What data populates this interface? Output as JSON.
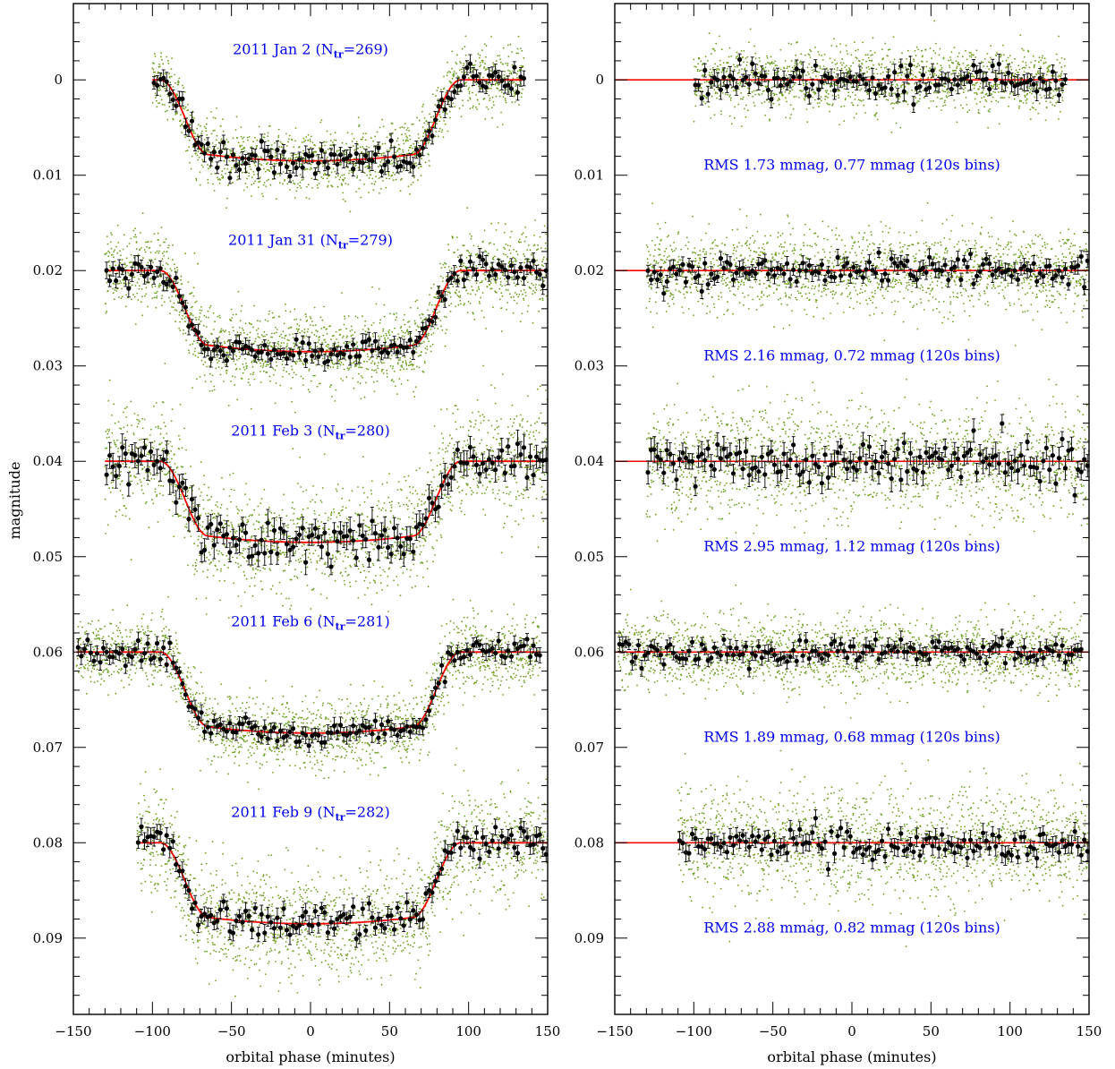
{
  "chart_data": [
    {
      "type": "scatter",
      "panel": "left",
      "title": "",
      "xlabel": "orbital phase (minutes)",
      "ylabel": "magnitude",
      "xlim": [
        -150,
        150
      ],
      "ylim": [
        0.098,
        -0.008
      ],
      "y_inverted": true,
      "x_ticks": [
        -150,
        -100,
        -50,
        0,
        50,
        100,
        150
      ],
      "x_tick_labels": [
        "−150",
        "−100",
        "−50",
        "0",
        "50",
        "100",
        "150"
      ],
      "y_ticks": [
        0,
        0.01,
        0.02,
        0.03,
        0.04,
        0.05,
        0.06,
        0.07,
        0.08,
        0.09
      ],
      "y_tick_labels": [
        "0",
        "0.01",
        "0.02",
        "0.03",
        "0.04",
        "0.05",
        "0.06",
        "0.07",
        "0.08",
        "0.09"
      ],
      "colors": {
        "raw_points": "#6e9e1e",
        "binned_points": "#000000",
        "model": "#ff0000",
        "annotations": "#0000ee"
      },
      "series": [
        {
          "offset": 0.0,
          "x_range": [
            -100,
            135
          ],
          "depth": 0.0085,
          "ingress_half_width": 80,
          "ingress_duration": 30,
          "raw_scatter": 0.0017,
          "bin_scatter": 0.0008,
          "label_main": "2011 Jan 2 (N",
          "label_sub": "tr",
          "label_end": "=269)",
          "label_x": 0,
          "label_y": -0.0027
        },
        {
          "offset": 0.02,
          "x_range": [
            -130,
            150
          ],
          "depth": 0.0085,
          "ingress_half_width": 80,
          "ingress_duration": 30,
          "raw_scatter": 0.0022,
          "bin_scatter": 0.0007,
          "label_main": "2011 Jan 31 (N",
          "label_sub": "tr",
          "label_end": "=279)",
          "label_x": 0,
          "label_y": 0.0173
        },
        {
          "offset": 0.04,
          "x_range": [
            -130,
            150
          ],
          "depth": 0.0085,
          "ingress_half_width": 80,
          "ingress_duration": 30,
          "raw_scatter": 0.0029,
          "bin_scatter": 0.0011,
          "label_main": "2011 Feb 3 (N",
          "label_sub": "tr",
          "label_end": "=280)",
          "label_x": 0,
          "label_y": 0.0373
        },
        {
          "offset": 0.06,
          "x_range": [
            -148,
            145
          ],
          "depth": 0.0085,
          "ingress_half_width": 80,
          "ingress_duration": 30,
          "raw_scatter": 0.0019,
          "bin_scatter": 0.0007,
          "label_main": "2011 Feb 6 (N",
          "label_sub": "tr",
          "label_end": "=281)",
          "label_x": 0,
          "label_y": 0.0573
        },
        {
          "offset": 0.08,
          "x_range": [
            -110,
            150
          ],
          "depth": 0.0085,
          "ingress_half_width": 80,
          "ingress_duration": 30,
          "raw_scatter": 0.0029,
          "bin_scatter": 0.0008,
          "label_main": "2011 Feb 9 (N",
          "label_sub": "tr",
          "label_end": "=282)",
          "label_x": 0,
          "label_y": 0.0773
        }
      ]
    },
    {
      "type": "scatter",
      "panel": "right",
      "title": "",
      "xlabel": "orbital phase (minutes)",
      "ylabel": "",
      "xlim": [
        -150,
        150
      ],
      "ylim": [
        0.098,
        -0.008
      ],
      "y_inverted": true,
      "x_ticks": [
        -150,
        -100,
        -50,
        0,
        50,
        100,
        150
      ],
      "x_tick_labels": [
        "−150",
        "−100",
        "−50",
        "0",
        "50",
        "100",
        "150"
      ],
      "y_ticks": [
        0,
        0.01,
        0.02,
        0.03,
        0.04,
        0.05,
        0.06,
        0.07,
        0.08,
        0.09
      ],
      "y_tick_labels": [
        "0",
        "0.01",
        "0.02",
        "0.03",
        "0.04",
        "0.05",
        "0.06",
        "0.07",
        "0.08",
        "0.09"
      ],
      "series": [
        {
          "offset": 0.0,
          "x_range": [
            -100,
            135
          ],
          "raw_scatter": 0.0017,
          "bin_scatter": 0.0008,
          "rms_label": "RMS 1.73 mmag, 0.77 mmag (120s bins)",
          "label_x": 0,
          "label_y": 0.0094
        },
        {
          "offset": 0.02,
          "x_range": [
            -130,
            150
          ],
          "raw_scatter": 0.0022,
          "bin_scatter": 0.0007,
          "rms_label": "RMS 2.16 mmag, 0.72 mmag (120s bins)",
          "label_x": 0,
          "label_y": 0.0294
        },
        {
          "offset": 0.04,
          "x_range": [
            -130,
            150
          ],
          "raw_scatter": 0.0029,
          "bin_scatter": 0.0011,
          "rms_label": "RMS 2.95 mmag, 1.12 mmag (120s bins)",
          "label_x": 0,
          "label_y": 0.0494
        },
        {
          "offset": 0.06,
          "x_range": [
            -148,
            145
          ],
          "raw_scatter": 0.0019,
          "bin_scatter": 0.0007,
          "rms_label": "RMS 1.89 mmag, 0.68 mmag (120s bins)",
          "label_x": 0,
          "label_y": 0.0694
        },
        {
          "offset": 0.08,
          "x_range": [
            -110,
            150
          ],
          "raw_scatter": 0.0029,
          "bin_scatter": 0.0008,
          "rms_label": "RMS 2.88 mmag, 0.82 mmag (120s bins)",
          "label_x": 0,
          "label_y": 0.0894
        }
      ]
    }
  ]
}
